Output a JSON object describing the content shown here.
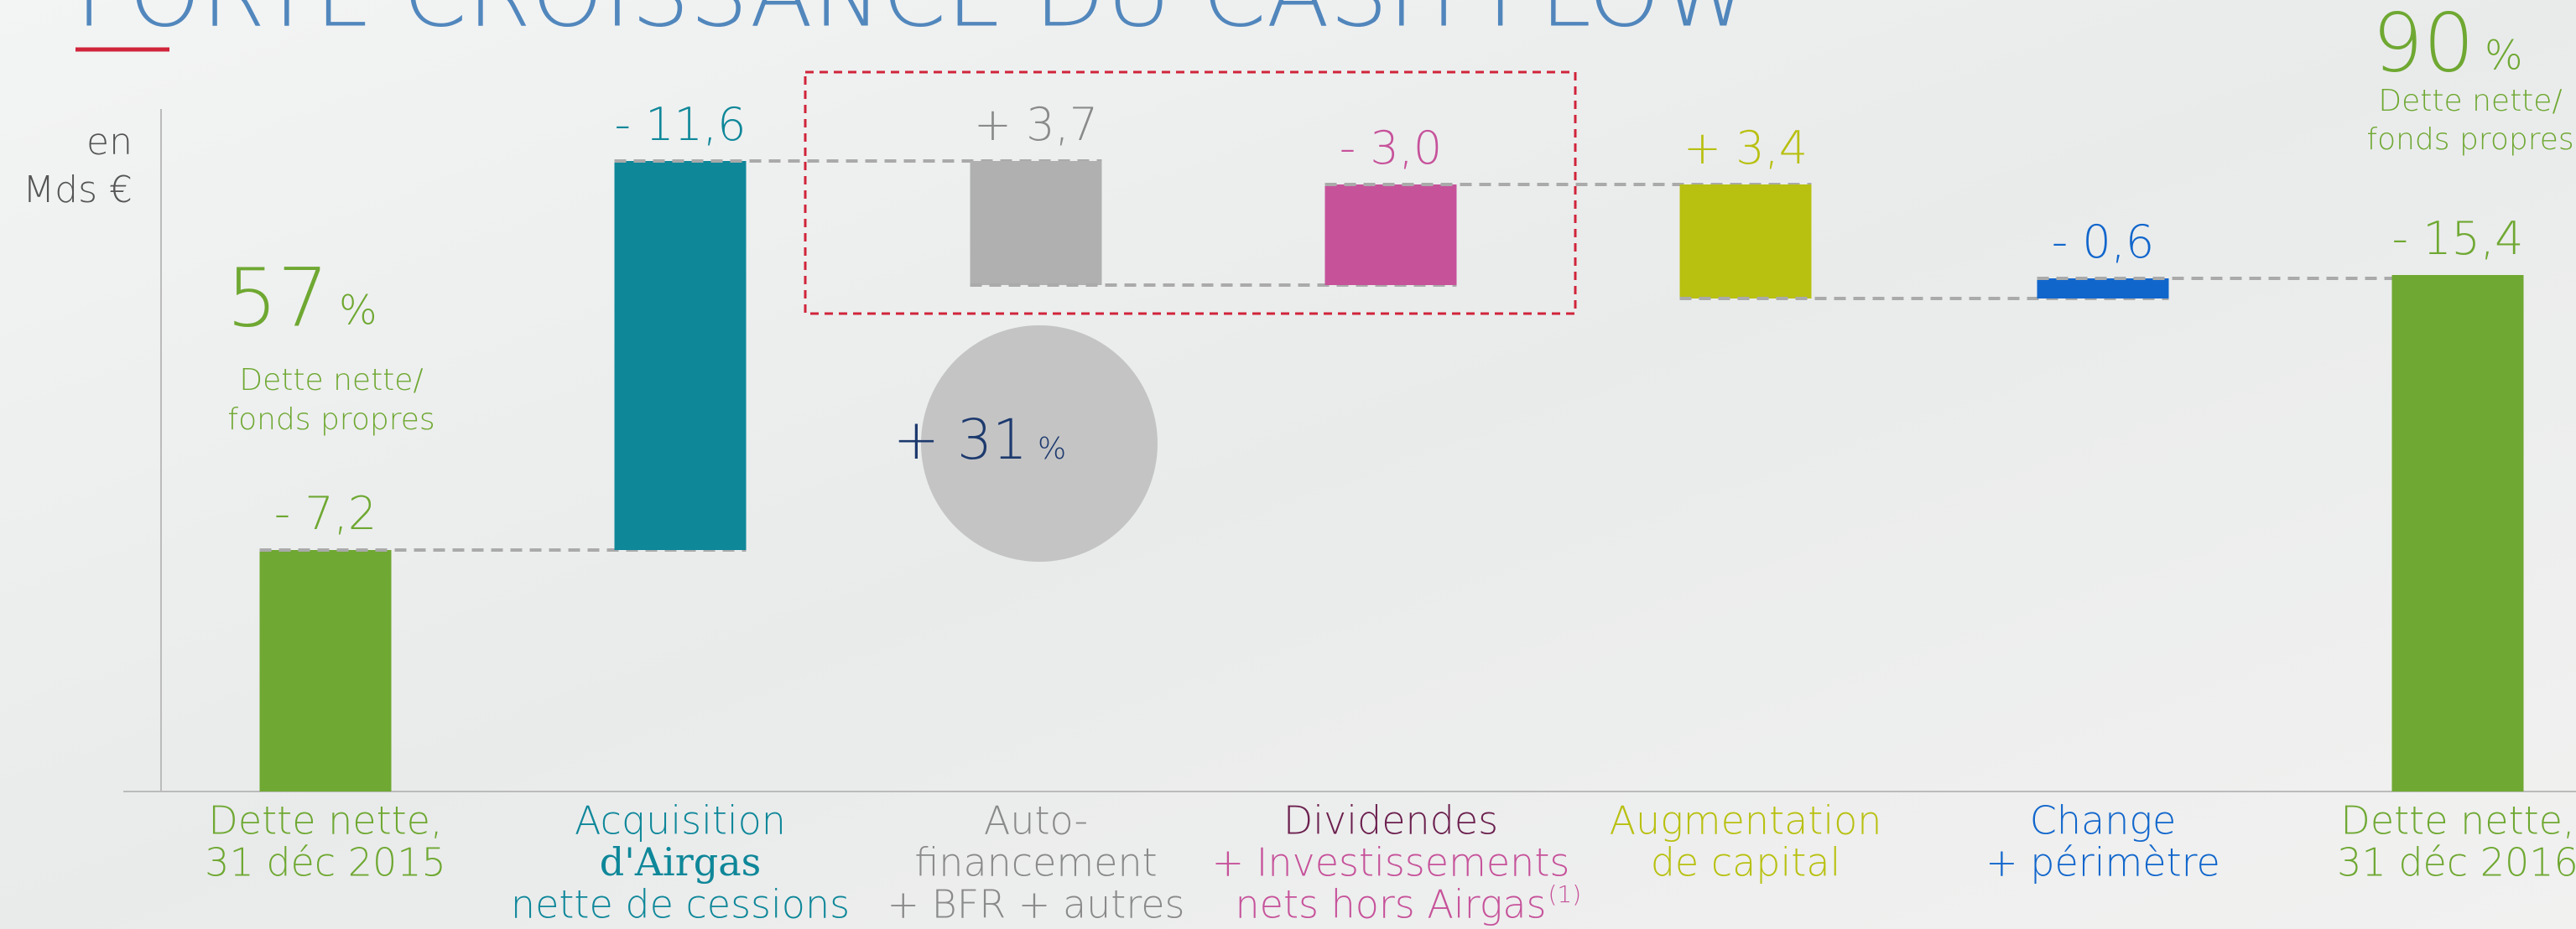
{
  "chart_data": {
    "type": "waterfall",
    "title": "FORTE CROISSANCE DU CASH FLOW",
    "unit_label": [
      "en",
      "Mds €"
    ],
    "categories": [
      [
        "Dette nette,",
        "31 déc 2015"
      ],
      [
        "Acquisition",
        "d'Airgas",
        "nette de cessions"
      ],
      [
        "Auto-",
        "financement",
        "+ BFR + autres"
      ],
      [
        "Dividendes",
        "+ Investissements",
        "nets hors Airgas"
      ],
      [
        "Augmentation",
        "de capital"
      ],
      [
        "Change",
        "+ périmètre"
      ],
      [
        "Dette nette,",
        "31 déc 2016"
      ]
    ],
    "footnote_mark": "(1)",
    "values": [
      -7.2,
      -11.6,
      3.7,
      -3.0,
      3.4,
      -0.6,
      -15.4
    ],
    "value_labels": [
      "- 7,2",
      "- 11,6",
      "+ 3,7",
      "- 3,0",
      "+ 3,4",
      "- 0,6",
      "- 15,4"
    ],
    "totals": [
      0,
      6
    ],
    "colors": [
      "#6fa832",
      "#0e8799",
      "#b0b0b0",
      "#c6529a",
      "#b8c010",
      "#1166cc",
      "#6fa832"
    ],
    "label_colors": [
      "#6fa832",
      "#0e8799",
      "#8a8a8a",
      "#c6529a",
      "#b8c010",
      "#1166cc",
      "#6fa832"
    ],
    "ylim": [
      0,
      -23.6
    ],
    "annotations": [
      {
        "value": "57",
        "unit": "%",
        "note": [
          "Dette nette/",
          "fonds propres"
        ]
      },
      {
        "value": "90",
        "unit": "%",
        "note": [
          "Dette nette/",
          "fonds propres"
        ]
      },
      {
        "value": "+ 31",
        "unit": "%"
      }
    ]
  }
}
